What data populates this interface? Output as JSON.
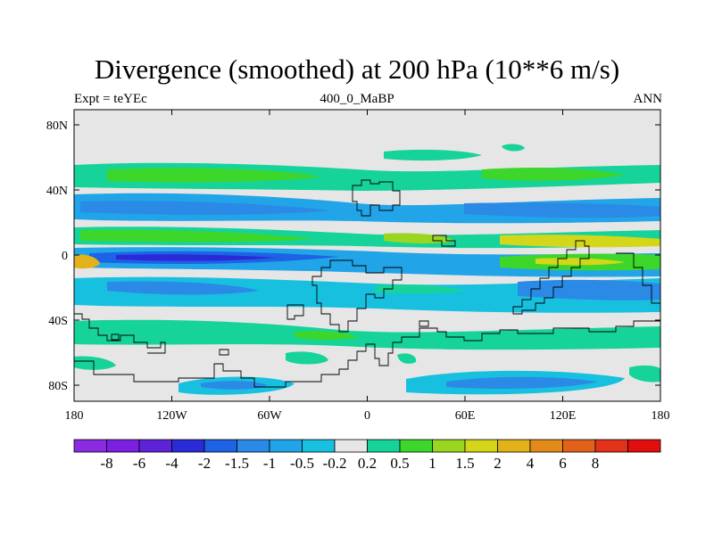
{
  "title": "Divergence (smoothed) at 200 hPa (10**6 m/s)",
  "subtitle_left": "Expt = teYEc",
  "subtitle_center": "400_0_MaBP",
  "subtitle_right": "ANN",
  "lat_ticks": [
    "80N",
    "40N",
    "0",
    "40S",
    "80S"
  ],
  "lon_ticks": [
    "180",
    "120W",
    "60W",
    "0",
    "60E",
    "120E",
    "180"
  ],
  "colorbar": {
    "colors": [
      "#8a2be2",
      "#7b1fe0",
      "#5e22d8",
      "#2a2ad6",
      "#1e63e6",
      "#2a8ae6",
      "#21a4e8",
      "#18c0e0",
      "#e6e6e6",
      "#16d39a",
      "#3dd62a",
      "#9ad620",
      "#d4d61a",
      "#e2b21a",
      "#e28a1a",
      "#e2621a",
      "#e2321a",
      "#e20e0e"
    ],
    "labels": [
      "-8",
      "-6",
      "-4",
      "-2",
      "-1.5",
      "-1",
      "-0.5",
      "-0.2",
      "0.2",
      "0.5",
      "1",
      "1.5",
      "2",
      "4",
      "6",
      "8"
    ]
  },
  "map_colors": {
    "background": "#e6e6e6",
    "green": "#16d39a",
    "lightgreen": "#3dd62a",
    "yellowgreen": "#9ad620",
    "yellow": "#d4d61a",
    "orange": "#e2b21a",
    "lightblue": "#18c0e0",
    "blue": "#21a4e8",
    "midblue": "#2a8ae6",
    "deepblue": "#1e63e6",
    "darkblue": "#2a2ad6",
    "outline": "#000000"
  }
}
